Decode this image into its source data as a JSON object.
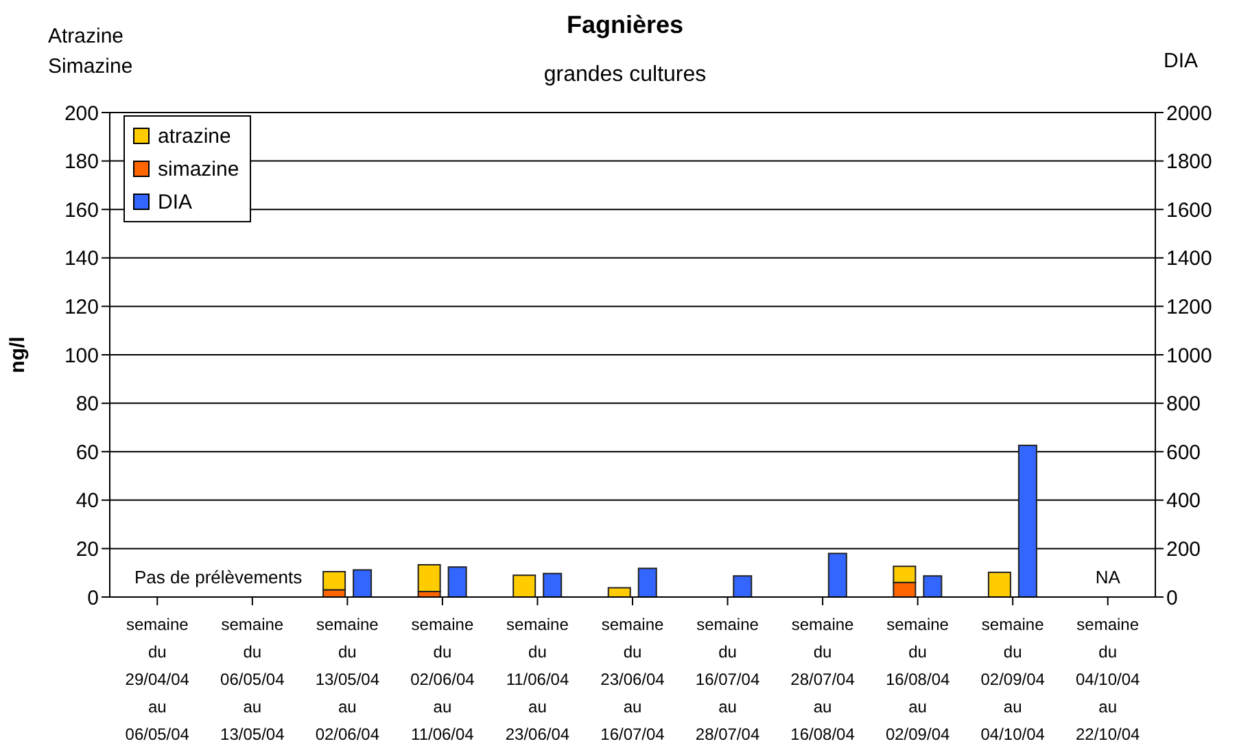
{
  "chart_data": {
    "type": "bar",
    "title": "Fagnières",
    "subtitle": "grandes cultures",
    "ylabel": "ng/l",
    "y2label": "DIA",
    "categories": [
      "semaine\ndu\n29/04/04\nau\n06/05/04",
      "semaine\ndu\n06/05/04\nau\n13/05/04",
      "semaine\ndu\n13/05/04\nau\n02/06/04",
      "semaine\ndu\n02/06/04\nau\n11/06/04",
      "semaine\ndu\n11/06/04\nau\n23/06/04",
      "semaine\ndu\n23/06/04\nau\n16/07/04",
      "semaine\ndu\n16/07/04\nau\n28/07/04",
      "semaine\ndu\n28/07/04\nau\n16/08/04",
      "semaine\ndu\n16/08/04\nau\n02/09/04",
      "semaine\ndu\n02/09/04\nau\n04/10/04",
      "semaine\ndu\n04/10/04\nau\n22/10/04"
    ],
    "series": [
      {
        "name": "simazine",
        "color": "#ff6600",
        "values": [
          null,
          null,
          3,
          2.3,
          null,
          null,
          null,
          null,
          6,
          null,
          null
        ]
      },
      {
        "name": "atrazine",
        "color": "#ffcc00",
        "values": [
          null,
          null,
          7.5,
          11,
          9,
          3.8,
          null,
          null,
          6.7,
          10.2,
          null
        ]
      },
      {
        "name": "DIA",
        "color": "#3366ff",
        "axis": "y2",
        "values": [
          null,
          null,
          112,
          124,
          97,
          118,
          87,
          180,
          87,
          626,
          null
        ]
      }
    ],
    "stacked": true,
    "ylim": [
      0,
      200
    ],
    "yticks": [
      0,
      20,
      40,
      60,
      80,
      100,
      120,
      140,
      160,
      180,
      200
    ],
    "y2lim": [
      0,
      2000
    ],
    "y2ticks": [
      0,
      200,
      400,
      600,
      800,
      1000,
      1200,
      1400,
      1600,
      1800,
      2000
    ],
    "grid": "y",
    "legend": "top left",
    "annotations": [
      "Atrazine\nSimazine",
      "Pas de prélèvements",
      "NA"
    ]
  }
}
